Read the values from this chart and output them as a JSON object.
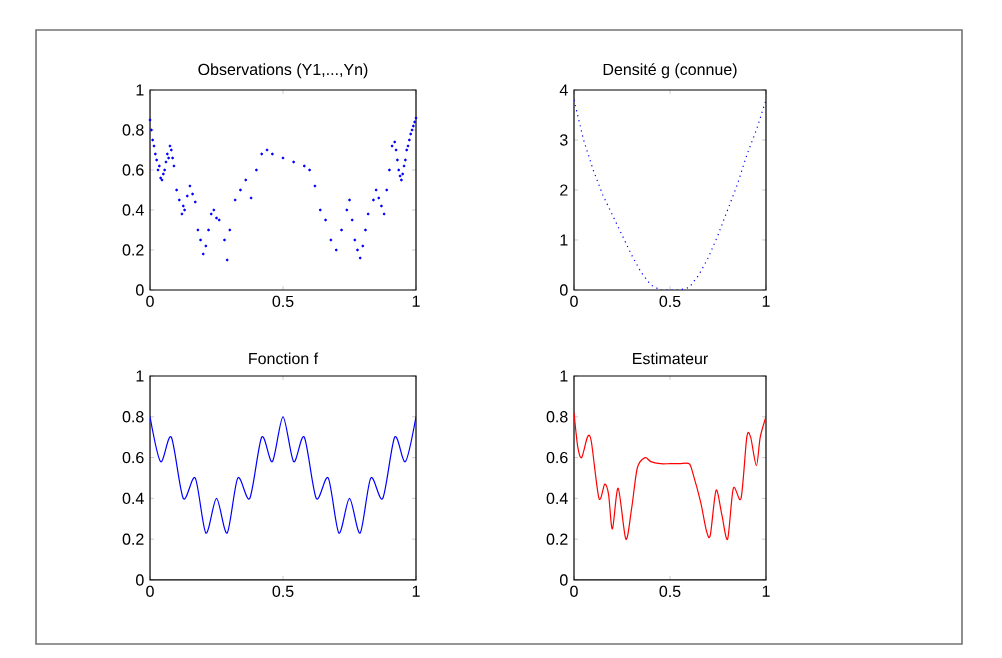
{
  "chart_data": [
    {
      "type": "scatter",
      "title": "Observations (Y1,...,Yn)",
      "color": "#0000ff",
      "marker": "circle",
      "xlim": [
        0,
        1
      ],
      "ylim": [
        0,
        1
      ],
      "xticks": [
        0,
        0.5,
        1
      ],
      "yticks": [
        0,
        0.2,
        0.4,
        0.6,
        0.8,
        1
      ],
      "x": [
        0,
        0.005,
        0.01,
        0.015,
        0.02,
        0.025,
        0.03,
        0.035,
        0.04,
        0.045,
        0.05,
        0.055,
        0.06,
        0.065,
        0.07,
        0.075,
        0.08,
        0.085,
        0.09,
        0.1,
        0.11,
        0.12,
        0.125,
        0.13,
        0.14,
        0.15,
        0.16,
        0.17,
        0.18,
        0.19,
        0.2,
        0.21,
        0.22,
        0.23,
        0.24,
        0.25,
        0.26,
        0.28,
        0.29,
        0.3,
        0.32,
        0.34,
        0.36,
        0.38,
        0.4,
        0.42,
        0.44,
        0.46,
        0.5,
        0.54,
        0.58,
        0.6,
        0.62,
        0.64,
        0.66,
        0.68,
        0.7,
        0.72,
        0.74,
        0.75,
        0.76,
        0.77,
        0.78,
        0.79,
        0.8,
        0.81,
        0.82,
        0.84,
        0.85,
        0.86,
        0.87,
        0.88,
        0.89,
        0.9,
        0.91,
        0.92,
        0.925,
        0.93,
        0.935,
        0.94,
        0.945,
        0.95,
        0.955,
        0.96,
        0.965,
        0.97,
        0.975,
        0.98,
        0.985,
        0.99,
        0.995,
        1
      ],
      "values": [
        0.85,
        0.8,
        0.75,
        0.72,
        0.68,
        0.65,
        0.6,
        0.62,
        0.56,
        0.55,
        0.58,
        0.6,
        0.64,
        0.68,
        0.66,
        0.72,
        0.7,
        0.66,
        0.62,
        0.5,
        0.45,
        0.38,
        0.42,
        0.4,
        0.47,
        0.52,
        0.48,
        0.44,
        0.3,
        0.25,
        0.18,
        0.22,
        0.3,
        0.38,
        0.4,
        0.36,
        0.35,
        0.25,
        0.15,
        0.3,
        0.45,
        0.5,
        0.55,
        0.46,
        0.6,
        0.68,
        0.7,
        0.68,
        0.66,
        0.64,
        0.62,
        0.6,
        0.52,
        0.4,
        0.35,
        0.25,
        0.2,
        0.3,
        0.4,
        0.45,
        0.35,
        0.25,
        0.2,
        0.16,
        0.22,
        0.3,
        0.38,
        0.45,
        0.5,
        0.46,
        0.42,
        0.38,
        0.5,
        0.6,
        0.72,
        0.74,
        0.7,
        0.65,
        0.6,
        0.57,
        0.55,
        0.58,
        0.62,
        0.65,
        0.7,
        0.72,
        0.75,
        0.78,
        0.8,
        0.82,
        0.84,
        0.86
      ]
    },
    {
      "type": "line",
      "title": "Densité g (connue)",
      "color": "#0000ff",
      "line_style": "dotted",
      "xlim": [
        0,
        1
      ],
      "ylim": [
        0,
        4
      ],
      "xticks": [
        0,
        0.5,
        1
      ],
      "yticks": [
        0,
        1,
        2,
        3,
        4
      ],
      "x": [
        0,
        0.05,
        0.1,
        0.15,
        0.2,
        0.25,
        0.3,
        0.35,
        0.4,
        0.45,
        0.5,
        0.55,
        0.6,
        0.65,
        0.7,
        0.75,
        0.8,
        0.85,
        0.9,
        0.95,
        1
      ],
      "values": [
        3.8,
        3.0,
        2.4,
        1.9,
        1.5,
        1.1,
        0.7,
        0.35,
        0.1,
        0,
        0,
        0,
        0.05,
        0.3,
        0.65,
        1.1,
        1.6,
        2.1,
        2.7,
        3.2,
        3.8
      ]
    },
    {
      "type": "line",
      "title": "Fonction f",
      "color": "#0000ff",
      "line_style": "solid",
      "xlim": [
        0,
        1
      ],
      "ylim": [
        0,
        1
      ],
      "xticks": [
        0,
        0.5,
        1
      ],
      "yticks": [
        0,
        0.2,
        0.4,
        0.6,
        0.8,
        1
      ],
      "x": [
        0,
        0.04,
        0.08,
        0.125,
        0.17,
        0.21,
        0.25,
        0.29,
        0.33,
        0.375,
        0.42,
        0.46,
        0.5,
        0.54,
        0.58,
        0.625,
        0.67,
        0.71,
        0.75,
        0.79,
        0.83,
        0.875,
        0.92,
        0.96,
        1
      ],
      "values": [
        0.8,
        0.58,
        0.7,
        0.4,
        0.5,
        0.23,
        0.4,
        0.23,
        0.5,
        0.4,
        0.7,
        0.58,
        0.8,
        0.58,
        0.7,
        0.4,
        0.5,
        0.23,
        0.4,
        0.23,
        0.5,
        0.4,
        0.7,
        0.58,
        0.8
      ]
    },
    {
      "type": "line",
      "title": "Estimateur",
      "color": "#ff0000",
      "line_style": "solid",
      "xlim": [
        0,
        1
      ],
      "ylim": [
        0,
        1
      ],
      "xticks": [
        0,
        0.5,
        1
      ],
      "yticks": [
        0,
        0.2,
        0.4,
        0.6,
        0.8,
        1
      ],
      "x": [
        0,
        0.02,
        0.04,
        0.07,
        0.09,
        0.13,
        0.16,
        0.18,
        0.2,
        0.23,
        0.27,
        0.3,
        0.33,
        0.37,
        0.4,
        0.45,
        0.5,
        0.55,
        0.6,
        0.62,
        0.66,
        0.69,
        0.71,
        0.74,
        0.77,
        0.8,
        0.83,
        0.87,
        0.9,
        0.92,
        0.95,
        0.97,
        1
      ],
      "values": [
        0.82,
        0.65,
        0.6,
        0.7,
        0.68,
        0.4,
        0.47,
        0.42,
        0.25,
        0.45,
        0.2,
        0.35,
        0.55,
        0.6,
        0.58,
        0.57,
        0.57,
        0.57,
        0.57,
        0.52,
        0.38,
        0.24,
        0.22,
        0.44,
        0.32,
        0.2,
        0.45,
        0.4,
        0.7,
        0.7,
        0.56,
        0.7,
        0.8
      ]
    }
  ]
}
